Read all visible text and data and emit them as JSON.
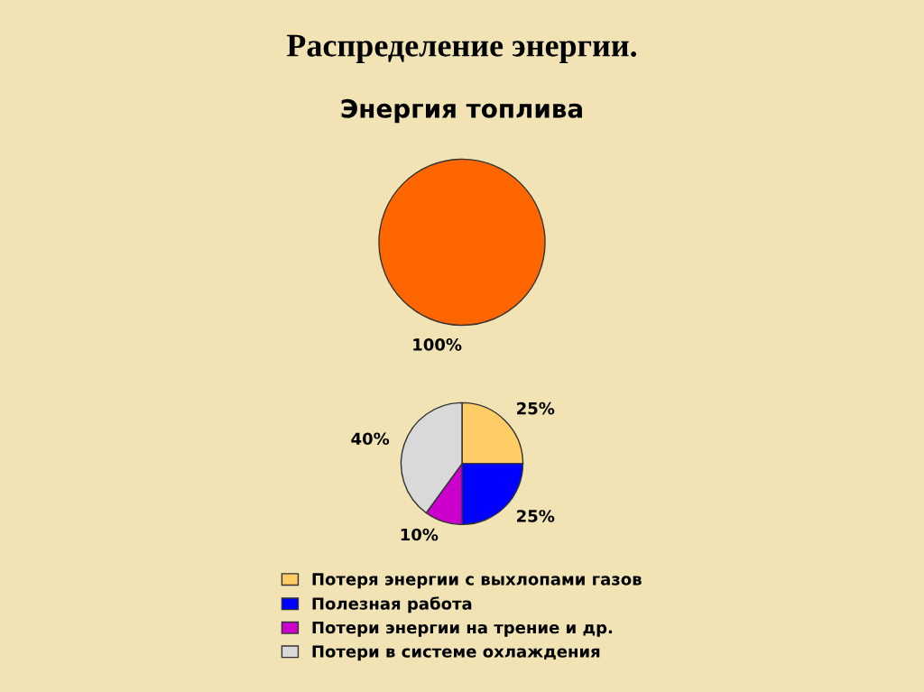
{
  "chart_data": [
    {
      "type": "pie",
      "title": "Распределение энергии.",
      "subtitle": "Энергия топлива",
      "categories": [
        null
      ],
      "values": [
        100
      ],
      "colors": [
        "#ff6600"
      ],
      "value_labels": [
        "100%"
      ]
    },
    {
      "type": "pie",
      "categories": [
        "Потеря энергии с выхлопами газов",
        "Полезная работа",
        "Потери энергии на трение и др.",
        "Потери в системе охлаждения"
      ],
      "values": [
        25,
        25,
        10,
        40
      ],
      "colors": [
        "#ffcc66",
        "#0000ff",
        "#cc00cc",
        "#d9d9d9"
      ],
      "value_labels": [
        "25%",
        "25%",
        "10%",
        "40%"
      ],
      "legend": "bottom"
    }
  ]
}
